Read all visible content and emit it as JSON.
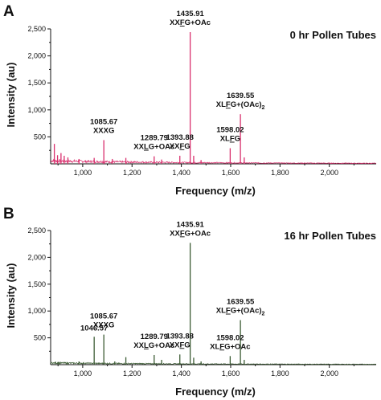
{
  "chart_data": [
    {
      "panel_letter": "A",
      "title": "0 hr Pollen Tubes",
      "type": "line",
      "color": "#d9306e",
      "xlabel": "Frequency (m/z)",
      "ylabel": "Intensity (au)",
      "xlim": [
        870,
        2190
      ],
      "ylim": [
        0,
        2500
      ],
      "xticks": [
        1000,
        1200,
        1400,
        1600,
        1800,
        2000
      ],
      "xtick_labels": [
        "1,000",
        "1,200",
        "1,400",
        "1,600",
        "1,800",
        "2,000"
      ],
      "yticks": [
        500,
        1000,
        1500,
        2000,
        2500
      ],
      "ytick_labels": [
        "500",
        "1,000",
        "1,500",
        "2,000",
        "2,500"
      ],
      "baseline": 60,
      "peaks": [
        {
          "x": 885,
          "y": 370
        },
        {
          "x": 898,
          "y": 160
        },
        {
          "x": 912,
          "y": 200
        },
        {
          "x": 925,
          "y": 150
        },
        {
          "x": 940,
          "y": 120
        },
        {
          "x": 985,
          "y": 90
        },
        {
          "x": 1046.57,
          "y": 110
        },
        {
          "x": 1085.67,
          "y": 440
        },
        {
          "x": 1120,
          "y": 90
        },
        {
          "x": 1175,
          "y": 110
        },
        {
          "x": 1289.79,
          "y": 140
        },
        {
          "x": 1320,
          "y": 80
        },
        {
          "x": 1393.88,
          "y": 150
        },
        {
          "x": 1435.91,
          "y": 2440
        },
        {
          "x": 1450,
          "y": 150
        },
        {
          "x": 1480,
          "y": 70
        },
        {
          "x": 1598.02,
          "y": 290
        },
        {
          "x": 1639.55,
          "y": 920
        },
        {
          "x": 1655,
          "y": 120
        }
      ],
      "peak_labels": [
        {
          "x": 1085.67,
          "line1": "1085.67",
          "line2": [
            "XXXG"
          ],
          "underline_index": -1
        },
        {
          "x": 1289.79,
          "line1": "1289.79",
          "line2": [
            "XX",
            "L",
            "G+OAc"
          ],
          "underline_index": 1
        },
        {
          "x": 1393.88,
          "line1": "1393.88",
          "line2": [
            "XX",
            "F",
            "G"
          ],
          "underline_index": 1
        },
        {
          "x": 1435.91,
          "line1": "1435.91",
          "line2": [
            "XX",
            "F",
            "G+OAc"
          ],
          "underline_index": 1
        },
        {
          "x": 1598.02,
          "line1": "1598.02",
          "line2": [
            "XL",
            "F",
            "G"
          ],
          "underline_index": 1
        },
        {
          "x": 1639.55,
          "line1": "1639.55",
          "line2": [
            "XL",
            "F",
            "G+(OAc)",
            "2"
          ],
          "underline_index": 1
        }
      ]
    },
    {
      "panel_letter": "B",
      "title": "16 hr Pollen Tubes",
      "type": "line",
      "color": "#3d5c35",
      "xlabel": "Frequency (m/z)",
      "ylabel": "Intensity (au)",
      "xlim": [
        870,
        2190
      ],
      "ylim": [
        0,
        2500
      ],
      "xticks": [
        1000,
        1200,
        1400,
        1600,
        1800,
        2000
      ],
      "xtick_labels": [
        "1,000",
        "1,200",
        "1,400",
        "1,600",
        "1,800",
        "2,000"
      ],
      "yticks": [
        500,
        1000,
        1500,
        2000,
        2500
      ],
      "ytick_labels": [
        "500",
        "1,000",
        "1,500",
        "2,000",
        "2,500"
      ],
      "baseline": 30,
      "peaks": [
        {
          "x": 900,
          "y": 50
        },
        {
          "x": 940,
          "y": 40
        },
        {
          "x": 985,
          "y": 60
        },
        {
          "x": 1046.57,
          "y": 520
        },
        {
          "x": 1085.67,
          "y": 560
        },
        {
          "x": 1130,
          "y": 60
        },
        {
          "x": 1175,
          "y": 140
        },
        {
          "x": 1289.79,
          "y": 180
        },
        {
          "x": 1320,
          "y": 90
        },
        {
          "x": 1393.88,
          "y": 190
        },
        {
          "x": 1435.91,
          "y": 2270
        },
        {
          "x": 1450,
          "y": 130
        },
        {
          "x": 1480,
          "y": 60
        },
        {
          "x": 1598.02,
          "y": 160
        },
        {
          "x": 1639.55,
          "y": 830
        },
        {
          "x": 1655,
          "y": 90
        }
      ],
      "peak_labels": [
        {
          "x": 1046.57,
          "line1": "1046.57",
          "line2": [],
          "underline_index": -1
        },
        {
          "x": 1085.67,
          "line1": "1085.67",
          "line2": [
            "XXXG"
          ],
          "underline_index": -1
        },
        {
          "x": 1289.79,
          "line1": "1289.79",
          "line2": [
            "XX",
            "L",
            "G+OAc"
          ],
          "underline_index": 1
        },
        {
          "x": 1393.88,
          "line1": "1393.88",
          "line2": [
            "XX",
            "F",
            "G"
          ],
          "underline_index": 1
        },
        {
          "x": 1435.91,
          "line1": "1435.91",
          "line2": [
            "XX",
            "F",
            "G+OAc"
          ],
          "underline_index": 1
        },
        {
          "x": 1598.02,
          "line1": "1598.02",
          "line2": [
            "XL",
            "F",
            "G+OAc"
          ],
          "underline_index": 1
        },
        {
          "x": 1639.55,
          "line1": "1639.55",
          "line2": [
            "XL",
            "F",
            "G+(OAc)",
            "2"
          ],
          "underline_index": 1
        }
      ]
    }
  ]
}
